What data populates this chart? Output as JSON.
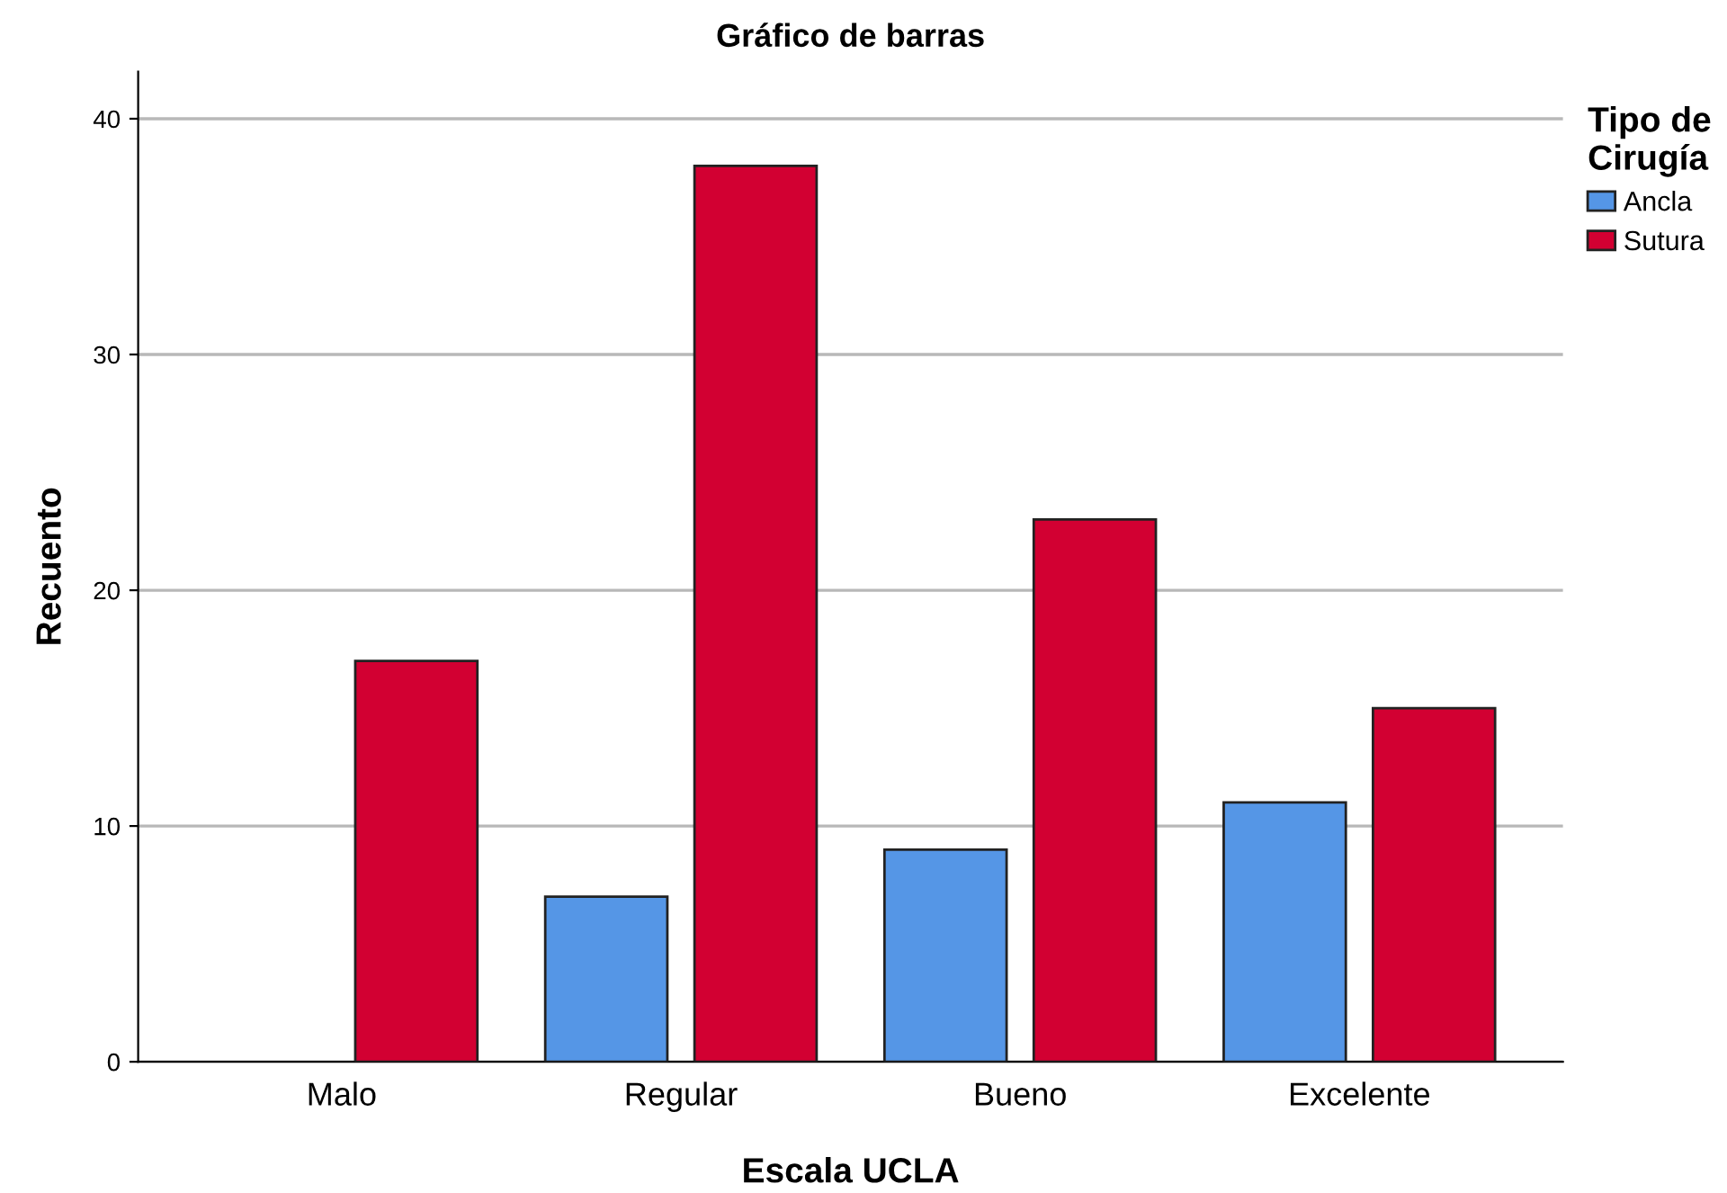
{
  "chart_data": {
    "type": "bar",
    "title": "Gráfico de barras",
    "xlabel": "Escala UCLA",
    "ylabel": "Recuento",
    "legend_title": "Tipo de\nCirugía",
    "categories": [
      "Malo",
      "Regular",
      "Bueno",
      "Excelente"
    ],
    "series": [
      {
        "name": "Ancla",
        "color": "#5596e6",
        "values": [
          null,
          7,
          9,
          11
        ]
      },
      {
        "name": "Sutura",
        "color": "#d20032",
        "values": [
          17,
          38,
          23,
          15
        ]
      }
    ],
    "ylim": [
      0,
      42
    ],
    "yticks": [
      0,
      10,
      20,
      30,
      40
    ],
    "grid": "y",
    "legend": "top right"
  }
}
